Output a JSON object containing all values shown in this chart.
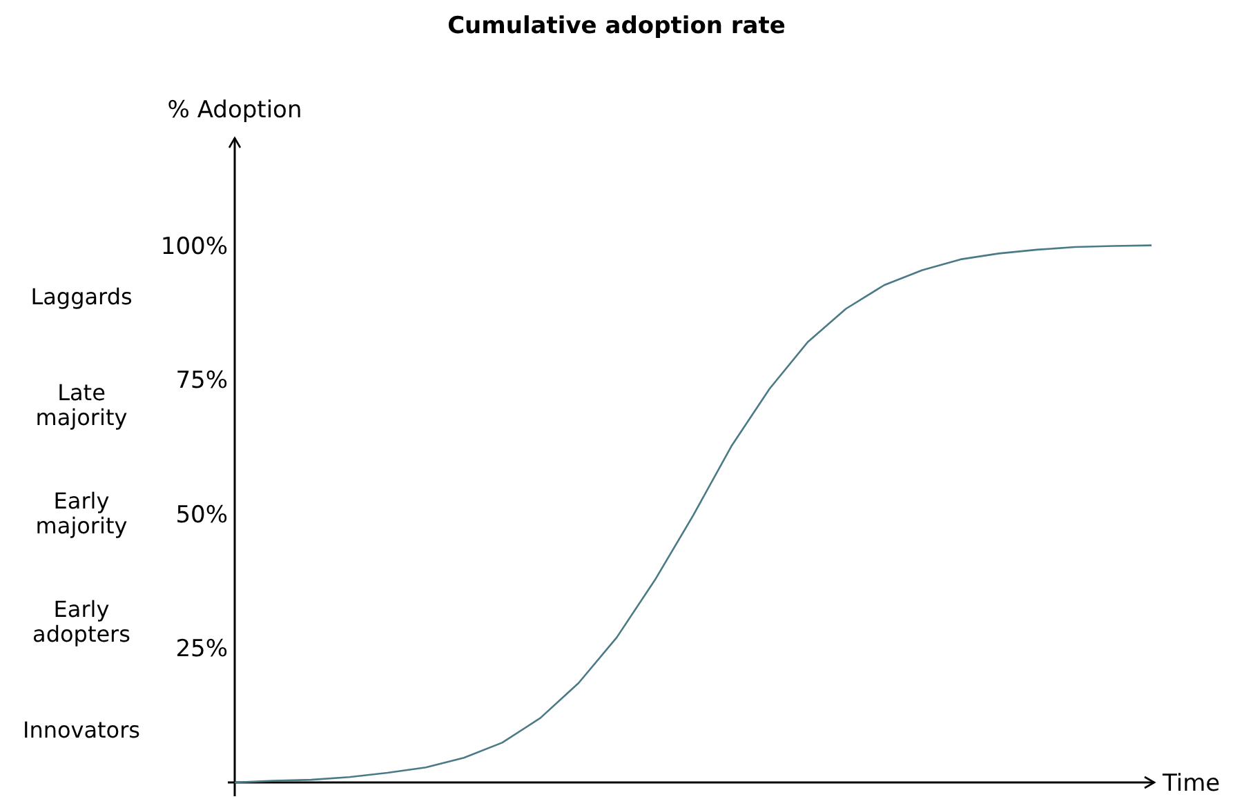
{
  "chart_data": {
    "type": "line",
    "title": "Cumulative adoption rate",
    "xlabel": "Time",
    "ylabel": "% Adoption",
    "categories": [
      null,
      null,
      null,
      null,
      null,
      null,
      null,
      null,
      null,
      null,
      null,
      null,
      null,
      null,
      null,
      null,
      null,
      null,
      null,
      null,
      null,
      null,
      null,
      null,
      null
    ],
    "series": [
      {
        "color": "#4a7a85",
        "values": [
          0,
          0.3,
          0.5,
          1,
          1.8,
          2.8,
          4.6,
          7.4,
          12,
          18.5,
          27,
          37.7,
          49.7,
          62.6,
          73.3,
          82,
          88.2,
          92.6,
          95.4,
          97.4,
          98.5,
          99.2,
          99.7,
          99.9,
          100
        ]
      }
    ],
    "ylim": [
      0,
      120
    ],
    "yticks": [
      {
        "value": 25,
        "label": "25%"
      },
      {
        "value": 50,
        "label": "50%"
      },
      {
        "value": 75,
        "label": "75%"
      },
      {
        "value": 100,
        "label": "100%"
      }
    ],
    "tick_labels": "y",
    "grid": false,
    "marker": "none",
    "line_style": "solid",
    "annotations": [
      "Laggards",
      "Late majority",
      "Early majority",
      "Early adopters",
      "Innovators"
    ]
  }
}
